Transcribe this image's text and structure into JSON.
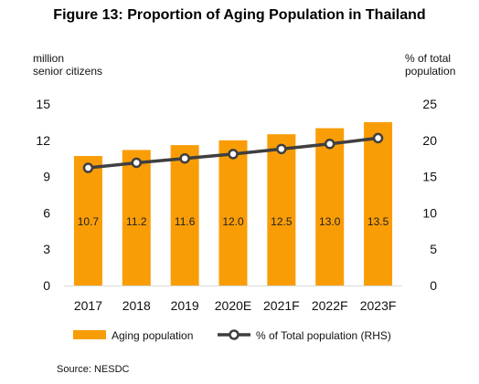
{
  "title": "Figure 13: Proportion of Aging Population  in Thailand",
  "source": "Source: NESDC",
  "chart_data": {
    "type": "bar",
    "title": "Figure 13: Proportion of Aging Population  in Thailand",
    "categories": [
      "2017",
      "2018",
      "2019",
      "2020E",
      "2021F",
      "2022F",
      "2023F"
    ],
    "ylabel": "million senior citizens",
    "ylabel_lines": [
      "million",
      "senior citizens"
    ],
    "ylim": [
      0,
      15
    ],
    "yticks": [
      0,
      3,
      6,
      9,
      12,
      15
    ],
    "y2label": "% of total population",
    "y2label_lines": [
      "% of total",
      "population"
    ],
    "y2lim": [
      0,
      25
    ],
    "y2ticks": [
      0,
      5,
      10,
      15,
      20,
      25
    ],
    "grid": false,
    "legend_position": "bottom",
    "series": [
      {
        "name": "Aging population",
        "type": "bar",
        "axis": "left",
        "color": "#F99D07",
        "values": [
          10.7,
          11.2,
          11.6,
          12.0,
          12.5,
          13.0,
          13.5
        ],
        "labels": [
          "10.7",
          "11.2",
          "11.6",
          "12.0",
          "12.5",
          "13.0",
          "13.5"
        ]
      },
      {
        "name": "% of Total population (RHS)",
        "type": "line",
        "axis": "right",
        "color": "#3F3F3F",
        "marker_fill": "#FFFFFF",
        "values": [
          16.2,
          16.9,
          17.5,
          18.1,
          18.8,
          19.5,
          20.3
        ]
      }
    ]
  }
}
